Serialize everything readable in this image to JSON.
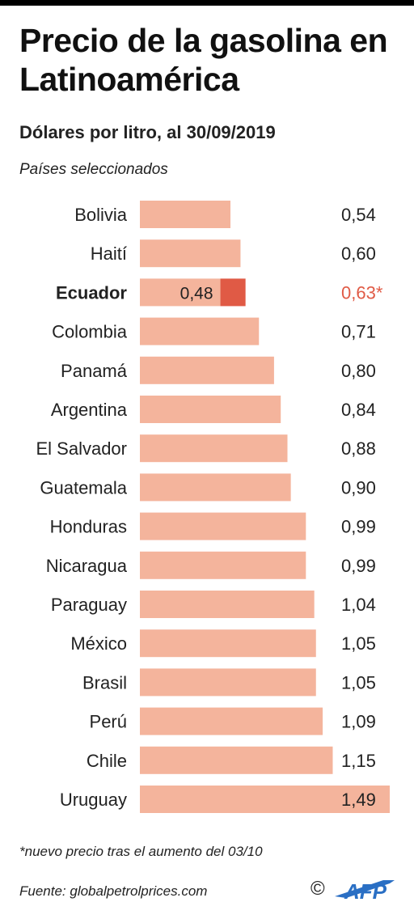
{
  "header": {
    "title": "Precio de la gasolina en Latinoamérica",
    "subtitle": "Dólares por litro, al 30/09/2019",
    "note": "Países seleccionados"
  },
  "footer": {
    "footnote": "*nuevo precio tras el aumento del 03/10",
    "source": "Fuente: globalpetrolprices.com",
    "copyright": "©",
    "brand": "AFP"
  },
  "colors": {
    "bar": "#f4b49c",
    "highlight_bar": "#e05a45",
    "highlight_text": "#e05a45",
    "text": "#222222"
  },
  "chart_data": {
    "type": "bar",
    "orientation": "horizontal",
    "categories": [
      "Bolivia",
      "Haití",
      "Ecuador",
      "Colombia",
      "Panamá",
      "Argentina",
      "El Salvador",
      "Guatemala",
      "Honduras",
      "Nicaragua",
      "Paraguay",
      "México",
      "Brasil",
      "Perú",
      "Chile",
      "Uruguay"
    ],
    "values": [
      0.54,
      0.6,
      0.63,
      0.71,
      0.8,
      0.84,
      0.88,
      0.9,
      0.99,
      0.99,
      1.04,
      1.05,
      1.05,
      1.09,
      1.15,
      1.49
    ],
    "value_labels": [
      "0,54",
      "0,60",
      "0,63*",
      "0,71",
      "0,80",
      "0,84",
      "0,88",
      "0,90",
      "0,99",
      "0,99",
      "1,04",
      "1,05",
      "1,05",
      "1,09",
      "1,15",
      "1,49"
    ],
    "highlight": {
      "category": "Ecuador",
      "previous_value": 0.48,
      "previous_label": "0,48",
      "new_value": 0.63
    },
    "xlim": [
      0,
      1.49
    ]
  }
}
